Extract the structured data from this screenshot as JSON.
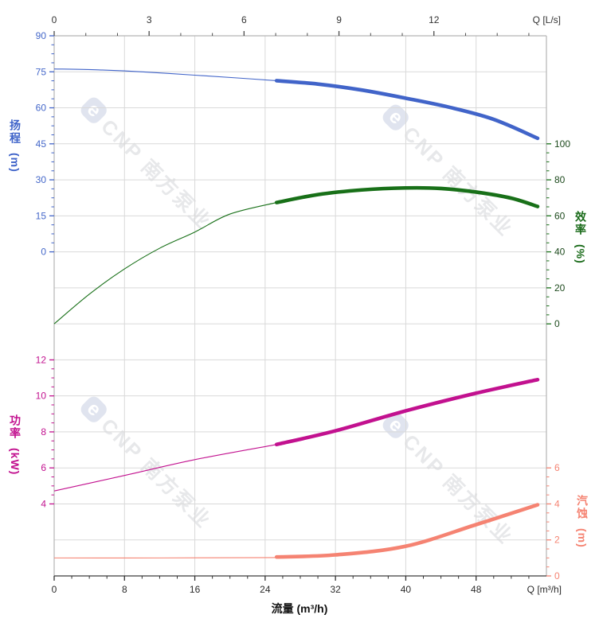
{
  "page": {
    "background": "#ffffff"
  },
  "watermark": {
    "logo_char": "e",
    "text": "CNP 南方泵业"
  },
  "chart_data": {
    "type": "line",
    "title": "",
    "grid": {
      "rows": 15,
      "cols": 7,
      "color": "#d9d9d9",
      "frame_color": "#b5b5b5",
      "bottom_axis_color": "#3c3c3c"
    },
    "x_bottom": {
      "unit": "m³/h",
      "min": 0,
      "max": 56,
      "majors": [
        0,
        8,
        16,
        24,
        32,
        40,
        48
      ],
      "minor_step": 2,
      "end_label": "Q [m³/h]",
      "title": "流量 (m³/h)",
      "label_color": "#2b2b2b"
    },
    "x_top": {
      "unit": "L/s",
      "min": 0,
      "max": 15.56,
      "majors": [
        0,
        3,
        6,
        9,
        12
      ],
      "minor_step": 1,
      "lps_to_m3h": 3.6,
      "end_label": "Q [L/s]",
      "label_color": "#333333"
    },
    "y_axes": {
      "head": {
        "title": "扬程",
        "unit": "(m)",
        "side": "left",
        "color": "#4164c9",
        "label_color": "#4467c9",
        "majors": [
          90,
          75,
          60,
          45,
          30,
          15,
          0
        ],
        "first_row": 0,
        "units_per_row": 15,
        "minor_divisions": 4
      },
      "eff": {
        "title": "效率",
        "unit": "(%)",
        "side": "right",
        "color": "#187018",
        "label_color": "#1d4a1d",
        "majors": [
          100,
          80,
          60,
          40,
          20,
          0
        ],
        "first_row": 3,
        "units_per_row": 20,
        "minor_divisions": 4
      },
      "power": {
        "title": "功率",
        "unit": "(kW)",
        "side": "left",
        "color": "#c2118f",
        "label_color": "#c2118f",
        "majors": [
          12,
          10,
          8,
          6,
          4
        ],
        "first_row": 9,
        "units_per_row": 2,
        "minor_divisions": 4
      },
      "npsh": {
        "title": "汽蚀",
        "unit": "(m)",
        "side": "right",
        "color": "#f58372",
        "label_color": "#f58372",
        "majors": [
          6,
          4,
          2,
          0
        ],
        "first_row": 12,
        "units_per_row": 2,
        "minor_divisions": 4
      }
    },
    "series": [
      {
        "name": "head-curve",
        "axis": "head",
        "x_unit": "m³/h",
        "y_unit": "m",
        "color": "#4164c9",
        "thin_points": [
          [
            0,
            76.2
          ],
          [
            5,
            75.8
          ],
          [
            10,
            75.0
          ],
          [
            16,
            73.6
          ],
          [
            21,
            72.4
          ],
          [
            25.3,
            71.3
          ]
        ],
        "thick_points": [
          [
            25.3,
            71.3
          ],
          [
            30,
            69.9
          ],
          [
            35,
            67.4
          ],
          [
            40,
            64.0
          ],
          [
            45,
            60.2
          ],
          [
            50,
            55.2
          ],
          [
            55,
            47.3
          ]
        ]
      },
      {
        "name": "efficiency-curve",
        "axis": "eff",
        "x_unit": "m³/h",
        "y_unit": "%",
        "color": "#187018",
        "thin_points": [
          [
            0,
            0
          ],
          [
            4,
            16.5
          ],
          [
            8,
            30.5
          ],
          [
            12,
            42
          ],
          [
            16,
            51
          ],
          [
            20,
            61
          ],
          [
            25.3,
            67.4
          ]
        ],
        "thick_points": [
          [
            25.3,
            67.4
          ],
          [
            30,
            71.8
          ],
          [
            35,
            74.4
          ],
          [
            40,
            75.5
          ],
          [
            44,
            75.2
          ],
          [
            48,
            73.2
          ],
          [
            52,
            69.8
          ],
          [
            55,
            65.2
          ]
        ]
      },
      {
        "name": "power-curve",
        "axis": "power",
        "x_unit": "m³/h",
        "y_unit": "kW",
        "color": "#c2118f",
        "thin_points": [
          [
            0,
            4.72
          ],
          [
            8,
            5.58
          ],
          [
            16,
            6.46
          ],
          [
            25.3,
            7.3
          ]
        ],
        "thick_points": [
          [
            25.3,
            7.3
          ],
          [
            32,
            8.06
          ],
          [
            40,
            9.17
          ],
          [
            48,
            10.15
          ],
          [
            55,
            10.9
          ]
        ]
      },
      {
        "name": "npsh-curve",
        "axis": "npsh",
        "x_unit": "m³/h",
        "y_unit": "m",
        "color": "#f58372",
        "thin_points": [
          [
            0,
            1.0
          ],
          [
            12,
            1.0
          ],
          [
            25.3,
            1.02
          ]
        ],
        "thick_points": [
          [
            25.3,
            1.05
          ],
          [
            32,
            1.17
          ],
          [
            40,
            1.65
          ],
          [
            48,
            2.85
          ],
          [
            55,
            3.95
          ]
        ]
      }
    ]
  }
}
